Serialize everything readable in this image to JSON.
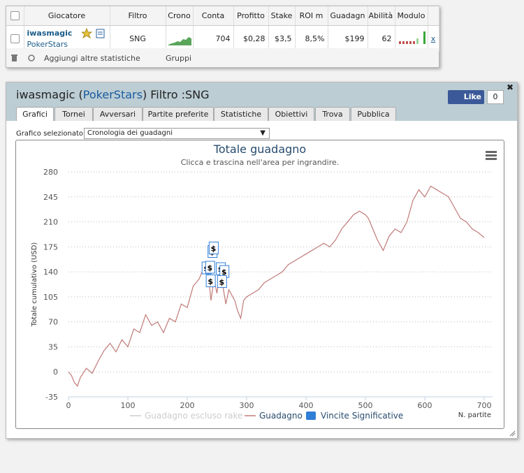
{
  "table": {
    "headers": [
      "Giocatore",
      "Filtro",
      "Crono",
      "Conta",
      "Profitto",
      "Stake",
      "ROI m",
      "Guadagn",
      "Abilità",
      "Modulo"
    ],
    "row": {
      "player": "iwasmagic",
      "site": "PokerStars",
      "filter": "SNG",
      "count": 704,
      "profit": "$0,28",
      "stake": "$3,5",
      "roi": "8,5%",
      "winnings": "$199",
      "skill": 62,
      "remove": "x"
    }
  },
  "toolbar": {
    "add_stats": "Aggiungi altre statistiche",
    "groups": "Gruppi"
  },
  "panel": {
    "title": [
      "iwasmagic (",
      "PokerStars",
      ") Filtro :SNG"
    ],
    "like": "Like",
    "like_count": 0,
    "tabs": [
      "Grafici",
      "Tornei",
      "Avversari",
      "Partite preferite",
      "Statistiche",
      "Obiettivi",
      "Trova",
      "Pubblica"
    ],
    "select_label": "Grafico selezionato",
    "select_value": "Cronologia dei guadagni"
  },
  "chart_data": {
    "type": "line",
    "title": "Totale guadagno",
    "subtitle": "Clicca e trascina nell'area per ingrandire.",
    "y_label": "Totale cumulativo (USD)",
    "x_label": "N. partite",
    "xlim": [
      0,
      700
    ],
    "ylim": [
      -35,
      280
    ],
    "xticks": [
      0,
      100,
      200,
      300,
      400,
      500,
      600,
      700
    ],
    "yticks": [
      -35,
      0,
      35,
      70,
      105,
      140,
      175,
      210,
      245,
      280
    ],
    "grid": true,
    "marker_symbol": "$",
    "series": [
      {
        "name": "Guadagno escluso rake",
        "color": "#cccccc",
        "visible": false
      },
      {
        "name": "Guadagno",
        "color": "#c07b78",
        "x": [
          0,
          5,
          10,
          15,
          20,
          30,
          40,
          50,
          60,
          70,
          80,
          90,
          100,
          110,
          120,
          130,
          140,
          150,
          160,
          170,
          180,
          190,
          200,
          210,
          220,
          230,
          235,
          240,
          245,
          250,
          255,
          260,
          265,
          270,
          280,
          285,
          290,
          295,
          300,
          310,
          320,
          330,
          340,
          350,
          360,
          370,
          380,
          390,
          400,
          410,
          420,
          430,
          440,
          450,
          460,
          470,
          480,
          490,
          500,
          505,
          510,
          520,
          530,
          540,
          550,
          560,
          570,
          580,
          590,
          600,
          610,
          620,
          630,
          640,
          650,
          660,
          670,
          680,
          690,
          700
        ],
        "values": [
          0,
          -5,
          -15,
          -20,
          -8,
          5,
          -2,
          15,
          30,
          40,
          28,
          45,
          35,
          60,
          55,
          80,
          65,
          70,
          55,
          75,
          70,
          95,
          90,
          120,
          130,
          150,
          140,
          100,
          130,
          110,
          140,
          120,
          95,
          115,
          100,
          85,
          75,
          100,
          105,
          110,
          115,
          125,
          130,
          135,
          140,
          150,
          155,
          160,
          165,
          170,
          175,
          180,
          175,
          185,
          200,
          210,
          220,
          225,
          220,
          215,
          205,
          185,
          170,
          190,
          200,
          195,
          210,
          240,
          255,
          245,
          260,
          255,
          250,
          245,
          230,
          215,
          210,
          200,
          195,
          188
        ]
      },
      {
        "name": "Vincite Significative",
        "color": "#2f7ed8",
        "x": [
          242,
          244,
          232,
          238,
          239,
          256,
          262,
          258
        ],
        "values": [
          168,
          173,
          145,
          146,
          127,
          144,
          140,
          126
        ]
      }
    ]
  }
}
